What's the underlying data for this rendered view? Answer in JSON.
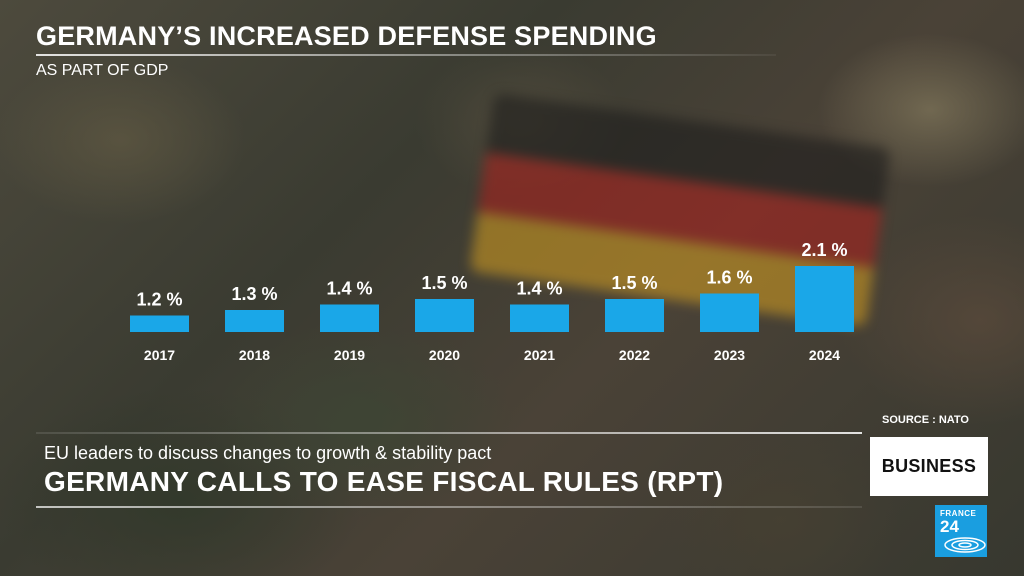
{
  "header": {
    "title": "GERMANY’S INCREASED DEFENSE SPENDING",
    "subtitle": "AS PART OF GDP"
  },
  "source": "SOURCE : NATO",
  "lower_third": {
    "subheadline": "EU leaders to discuss changes to growth & stability pact",
    "headline": "GERMANY CALLS TO EASE FISCAL RULES (RPT)"
  },
  "section_badge": "BUSINESS",
  "logo": {
    "line1": "FRANCE",
    "line2": "24"
  },
  "colors": {
    "bar": "#1aa7e8",
    "text": "#ffffff"
  },
  "chart_data": {
    "type": "bar",
    "title": "GERMANY’S INCREASED DEFENSE SPENDING",
    "subtitle": "AS PART OF GDP",
    "xlabel": "",
    "ylabel": "",
    "categories": [
      "2017",
      "2018",
      "2019",
      "2020",
      "2021",
      "2022",
      "2023",
      "2024"
    ],
    "values": [
      1.2,
      1.3,
      1.4,
      1.5,
      1.4,
      1.5,
      1.6,
      2.1
    ],
    "value_labels": [
      "1.2 %",
      "1.3 %",
      "1.4 %",
      "1.5 %",
      "1.4 %",
      "1.5 %",
      "1.6 %",
      "2.1 %"
    ],
    "unit": "% of GDP",
    "ylim": [
      0.9,
      2.1
    ],
    "grid": false,
    "legend": "none"
  }
}
